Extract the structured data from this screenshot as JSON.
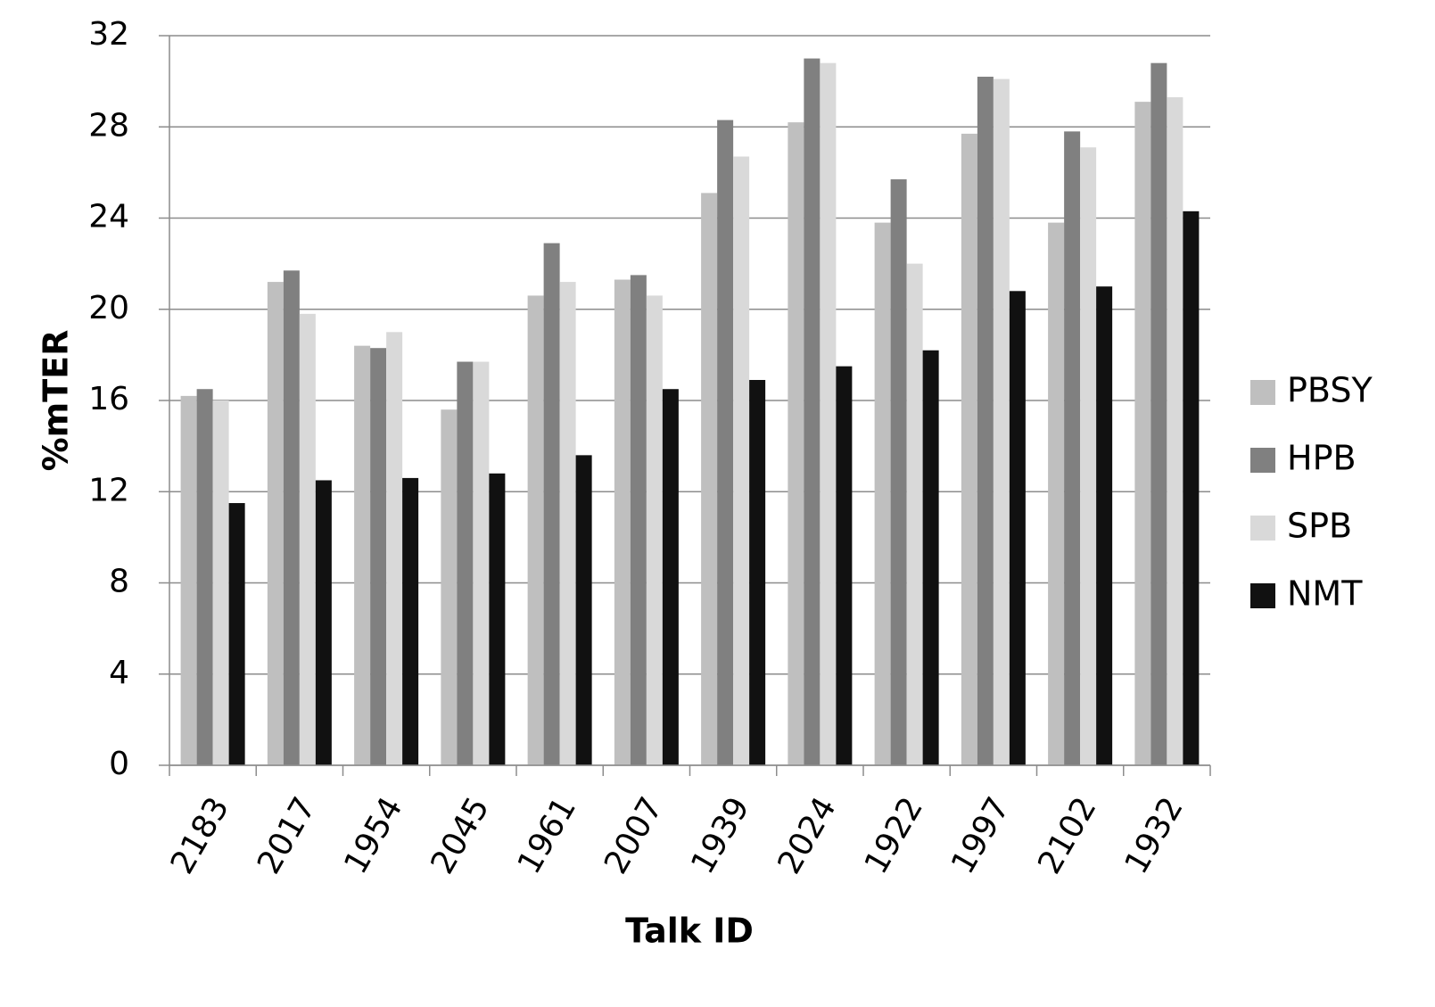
{
  "chart_data": {
    "type": "bar",
    "y_label": "%mTER",
    "x_label": "Talk ID",
    "categories": [
      "2183",
      "2017",
      "1954",
      "2045",
      "1961",
      "2007",
      "1939",
      "2024",
      "1922",
      "1997",
      "2102",
      "1932"
    ],
    "series": [
      {
        "name": "PBSY",
        "color": "#bfbfbf",
        "values": [
          16.2,
          21.2,
          18.4,
          15.6,
          20.6,
          21.3,
          25.1,
          28.2,
          23.8,
          27.7,
          23.8,
          29.1
        ]
      },
      {
        "name": "HPB",
        "color": "#808080",
        "values": [
          16.5,
          21.7,
          18.3,
          17.7,
          22.9,
          21.5,
          28.3,
          31.0,
          25.7,
          30.2,
          27.8,
          30.8
        ]
      },
      {
        "name": "SPB",
        "color": "#d9d9d9",
        "values": [
          16.0,
          19.8,
          19.0,
          17.7,
          21.2,
          20.6,
          26.7,
          30.8,
          22.0,
          30.1,
          27.1,
          29.3
        ]
      },
      {
        "name": "NMT",
        "color": "#111111",
        "values": [
          11.5,
          12.5,
          12.6,
          12.8,
          13.6,
          16.5,
          16.9,
          17.5,
          18.2,
          20.8,
          21.0,
          24.3
        ]
      }
    ],
    "ylim": [
      0,
      32
    ],
    "yticks": [
      0,
      4,
      8,
      12,
      16,
      20,
      24,
      28,
      32
    ],
    "grid": true,
    "legend": "right"
  }
}
